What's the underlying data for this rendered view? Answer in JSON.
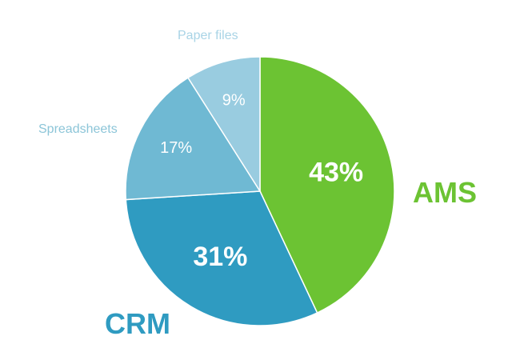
{
  "chart_data": {
    "type": "pie",
    "title": "",
    "start_angle_deg": 0,
    "direction": "clockwise",
    "slices": [
      {
        "name": "AMS",
        "value": 43,
        "label": "43%",
        "color": "#6cc333",
        "label_color": "#6cc333",
        "emphasis": true
      },
      {
        "name": "CRM",
        "value": 31,
        "label": "31%",
        "color": "#2f9bc1",
        "label_color": "#2f9bc1",
        "emphasis": true
      },
      {
        "name": "Spreadsheets",
        "value": 17,
        "label": "17%",
        "color": "#6fb9d3",
        "label_color": "#8cc5d8",
        "emphasis": false
      },
      {
        "name": "Paper files",
        "value": 9,
        "label": "9%",
        "color": "#99cce0",
        "label_color": "#a9d4e6",
        "emphasis": false
      }
    ]
  }
}
